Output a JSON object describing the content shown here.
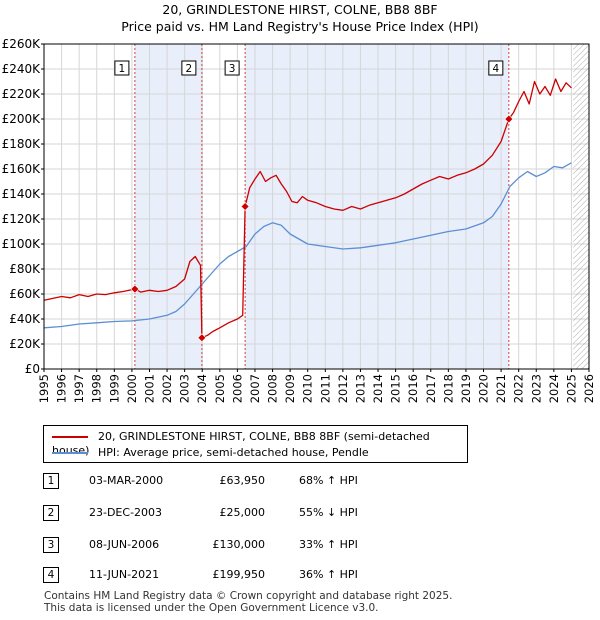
{
  "header": {
    "title": "20, GRINDLESTONE HIRST, COLNE, BB8 8BF",
    "subtitle": "Price paid vs. HM Land Registry's House Price Index (HPI)"
  },
  "colors": {
    "price_line": "#cc0000",
    "hpi_line": "#5b8fd4",
    "shade": "#e8eefa",
    "marker_line": "#cc4444",
    "hatch": "#888888"
  },
  "chart_data": {
    "type": "line",
    "title": "Price paid vs. HM Land Registry's House Price Index (HPI)",
    "xlim": [
      1995,
      2026
    ],
    "ylim": [
      0,
      260000
    ],
    "y_ticks": [
      {
        "value": 0,
        "label": "£0"
      },
      {
        "value": 20000,
        "label": "£20K"
      },
      {
        "value": 40000,
        "label": "£40K"
      },
      {
        "value": 60000,
        "label": "£60K"
      },
      {
        "value": 80000,
        "label": "£80K"
      },
      {
        "value": 100000,
        "label": "£100K"
      },
      {
        "value": 120000,
        "label": "£120K"
      },
      {
        "value": 140000,
        "label": "£140K"
      },
      {
        "value": 160000,
        "label": "£160K"
      },
      {
        "value": 180000,
        "label": "£180K"
      },
      {
        "value": 200000,
        "label": "£200K"
      },
      {
        "value": 220000,
        "label": "£220K"
      },
      {
        "value": 240000,
        "label": "£240K"
      },
      {
        "value": 260000,
        "label": "£260K"
      }
    ],
    "x_ticks": [
      "1995",
      "1996",
      "1997",
      "1998",
      "1999",
      "2000",
      "2001",
      "2002",
      "2003",
      "2004",
      "2005",
      "2006",
      "2007",
      "2008",
      "2009",
      "2010",
      "2011",
      "2012",
      "2013",
      "2014",
      "2015",
      "2016",
      "2017",
      "2018",
      "2019",
      "2020",
      "2021",
      "2022",
      "2023",
      "2024",
      "2025",
      "2026"
    ],
    "grid": true,
    "shaded_ranges": [
      [
        2000.17,
        2003.98
      ],
      [
        2006.44,
        2021.44
      ]
    ],
    "hatched_from": 2025.1,
    "sales": [
      {
        "label": "1",
        "x": 2000.17,
        "y": 63950
      },
      {
        "label": "2",
        "x": 2003.98,
        "y": 25000
      },
      {
        "label": "3",
        "x": 2006.44,
        "y": 130000
      },
      {
        "label": "4",
        "x": 2021.44,
        "y": 199950
      }
    ],
    "series": [
      {
        "name": "20, GRINDLESTONE HIRST, COLNE, BB8 8BF (semi-detached house)",
        "color": "#cc0000",
        "x": [
          1995.0,
          1995.5,
          1996.0,
          1996.5,
          1997.0,
          1997.5,
          1998.0,
          1998.5,
          1999.0,
          1999.5,
          2000.17,
          2000.5,
          2001.0,
          2001.5,
          2002.0,
          2002.5,
          2003.0,
          2003.3,
          2003.6,
          2003.9,
          2003.98,
          2004.3,
          2004.6,
          2005.0,
          2005.5,
          2006.0,
          2006.3,
          2006.44,
          2006.7,
          2007.0,
          2007.3,
          2007.6,
          2007.9,
          2008.2,
          2008.5,
          2008.8,
          2009.1,
          2009.4,
          2009.7,
          2010.0,
          2010.5,
          2011.0,
          2011.5,
          2012.0,
          2012.5,
          2013.0,
          2013.5,
          2014.0,
          2014.5,
          2015.0,
          2015.5,
          2016.0,
          2016.5,
          2017.0,
          2017.5,
          2018.0,
          2018.5,
          2019.0,
          2019.5,
          2020.0,
          2020.5,
          2021.0,
          2021.44,
          2021.7,
          2022.0,
          2022.3,
          2022.6,
          2022.9,
          2023.2,
          2023.5,
          2023.8,
          2024.1,
          2024.4,
          2024.7,
          2025.0
        ],
        "y": [
          55000,
          56500,
          58000,
          57000,
          59500,
          58000,
          60000,
          59500,
          61000,
          62000,
          63950,
          61500,
          63000,
          62000,
          63000,
          66000,
          72000,
          86000,
          90000,
          83000,
          25000,
          27000,
          30000,
          33000,
          37000,
          40000,
          43000,
          130000,
          145000,
          152000,
          158000,
          150000,
          153000,
          155000,
          148000,
          142000,
          134000,
          133000,
          138000,
          135000,
          133000,
          130000,
          128000,
          127000,
          130000,
          128000,
          131000,
          133000,
          135000,
          137000,
          140000,
          144000,
          148000,
          151000,
          154000,
          152000,
          155000,
          157000,
          160000,
          164000,
          171000,
          182000,
          199950,
          205000,
          214000,
          222000,
          212000,
          230000,
          220000,
          226000,
          219000,
          232000,
          222000,
          229000,
          225000
        ]
      },
      {
        "name": "HPI: Average price, semi-detached house, Pendle",
        "color": "#5b8fd4",
        "x": [
          1995.0,
          1996.0,
          1997.0,
          1998.0,
          1999.0,
          2000.0,
          2001.0,
          2002.0,
          2002.5,
          2003.0,
          2003.5,
          2004.0,
          2004.5,
          2005.0,
          2005.5,
          2006.0,
          2006.5,
          2007.0,
          2007.5,
          2008.0,
          2008.5,
          2009.0,
          2009.5,
          2010.0,
          2011.0,
          2012.0,
          2013.0,
          2014.0,
          2015.0,
          2016.0,
          2017.0,
          2018.0,
          2019.0,
          2020.0,
          2020.5,
          2021.0,
          2021.5,
          2022.0,
          2022.5,
          2023.0,
          2023.5,
          2024.0,
          2024.5,
          2025.0
        ],
        "y": [
          33000,
          34000,
          36000,
          37000,
          38000,
          38500,
          40000,
          43000,
          46000,
          52000,
          60000,
          68000,
          76000,
          84000,
          90000,
          94000,
          98000,
          108000,
          114000,
          117000,
          115000,
          108000,
          104000,
          100000,
          98000,
          96000,
          97000,
          99000,
          101000,
          104000,
          107000,
          110000,
          112000,
          117000,
          122000,
          132000,
          146000,
          153000,
          158000,
          154000,
          157000,
          162000,
          161000,
          165000
        ]
      }
    ]
  },
  "legend": {
    "items": [
      {
        "label": "20, GRINDLESTONE HIRST, COLNE, BB8 8BF (semi-detached house)",
        "color": "#cc0000"
      },
      {
        "label": "HPI: Average price, semi-detached house, Pendle",
        "color": "#5b8fd4"
      }
    ]
  },
  "transactions": [
    {
      "num": "1",
      "date": "03-MAR-2000",
      "price": "£63,950",
      "hpi": "68% ↑ HPI"
    },
    {
      "num": "2",
      "date": "23-DEC-2003",
      "price": "£25,000",
      "hpi": "55% ↓ HPI"
    },
    {
      "num": "3",
      "date": "08-JUN-2006",
      "price": "£130,000",
      "hpi": "33% ↑ HPI"
    },
    {
      "num": "4",
      "date": "11-JUN-2021",
      "price": "£199,950",
      "hpi": "36% ↑ HPI"
    }
  ],
  "footer": {
    "line1": "Contains HM Land Registry data © Crown copyright and database right 2025.",
    "line2": "This data is licensed under the Open Government Licence v3.0."
  }
}
